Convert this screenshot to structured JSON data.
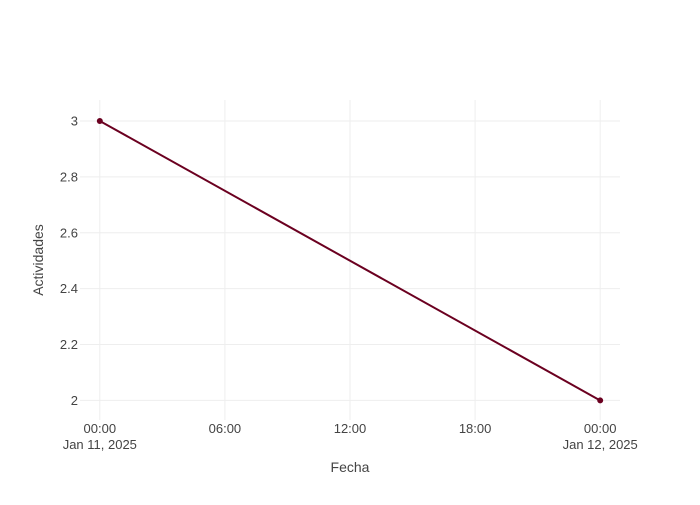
{
  "chart_data": {
    "type": "line",
    "title": "",
    "xlabel": "Fecha",
    "ylabel": "Actividades",
    "x_axis_type": "date",
    "x_range": [
      "2025-01-10T23:03:00",
      "2025-01-12T00:57:00"
    ],
    "y_range": [
      1.93,
      3.075
    ],
    "y_ticks": [
      {
        "value": 2,
        "label": "2"
      },
      {
        "value": 2.2,
        "label": "2.2"
      },
      {
        "value": 2.4,
        "label": "2.4"
      },
      {
        "value": 2.6,
        "label": "2.6"
      },
      {
        "value": 2.8,
        "label": "2.8"
      },
      {
        "value": 3,
        "label": "3"
      }
    ],
    "x_ticks": [
      {
        "value": "2025-01-11T00:00:00",
        "line1": "00:00",
        "line2": "Jan 11, 2025"
      },
      {
        "value": "2025-01-11T06:00:00",
        "line1": "06:00",
        "line2": ""
      },
      {
        "value": "2025-01-11T12:00:00",
        "line1": "12:00",
        "line2": ""
      },
      {
        "value": "2025-01-11T18:00:00",
        "line1": "18:00",
        "line2": ""
      },
      {
        "value": "2025-01-12T00:00:00",
        "line1": "00:00",
        "line2": "Jan 12, 2025"
      }
    ],
    "grid": true,
    "legend": false,
    "series": [
      {
        "color": "#6b0020",
        "mode": "lines+markers",
        "x": [
          "2025-01-11T00:00:00",
          "2025-01-12T00:00:00"
        ],
        "y": [
          3,
          2
        ]
      }
    ]
  }
}
